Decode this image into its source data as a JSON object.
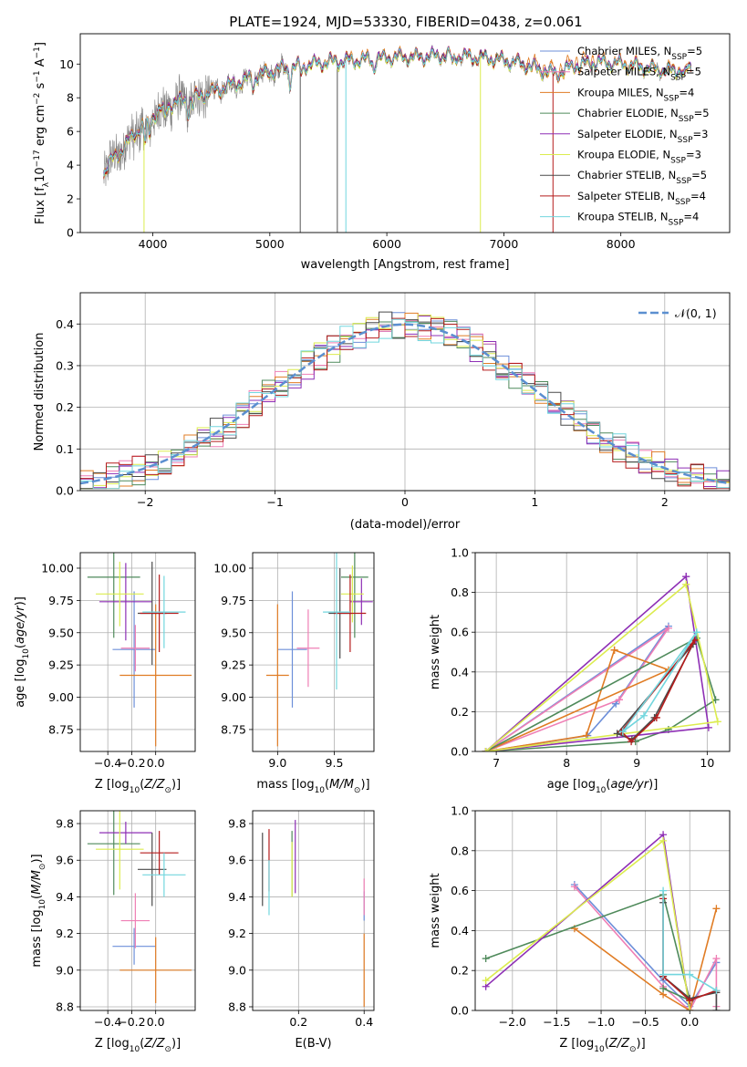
{
  "figure_title": "PLATE=1924, MJD=53330, FIBERID=0438, z=0.061",
  "colors": {
    "Chabrier MILES": "#6d8fd9",
    "Salpeter MILES": "#ef7fb5",
    "Kroupa MILES": "#e07c24",
    "Chabrier ELODIE": "#4f8a5b",
    "Salpeter ELODIE": "#8e2fb5",
    "Kroupa ELODIE": "#dcec4e",
    "Chabrier STELIB": "#4a4a4a",
    "Salpeter STELIB": "#b51c1c",
    "Kroupa STELIB": "#72d6de",
    "data": "#808080",
    "normal": "#5b8fd0"
  },
  "chart_data": [
    {
      "id": "spectrum",
      "type": "line",
      "title": "PLATE=1924, MJD=53330, FIBERID=0438, z=0.061",
      "xlabel": "wavelength [Angstrom, rest frame]",
      "ylabel": "Flux [f_λ 10^-17 erg cm^-2 s^-1 A^-1]",
      "xlim": [
        3380,
        8930
      ],
      "ylim": [
        0,
        11.8
      ],
      "xticks": [
        4000,
        5000,
        6000,
        7000,
        8000
      ],
      "yticks": [
        0,
        2,
        4,
        6,
        8,
        10
      ],
      "legend_position": "right",
      "legend": [
        "Chabrier MILES, N_SSP=5",
        "Salpeter MILES, N_SSP=5",
        "Kroupa MILES, N_SSP=4",
        "Chabrier ELODIE, N_SSP=5",
        "Salpeter ELODIE, N_SSP=3",
        "Kroupa ELODIE, N_SSP=3",
        "Chabrier STELIB, N_SSP=5",
        "Salpeter STELIB, N_SSP=4",
        "Kroupa STELIB, N_SSP=4"
      ],
      "continuum": [
        [
          3580,
          3.5
        ],
        [
          3650,
          4.3
        ],
        [
          3750,
          5.0
        ],
        [
          3850,
          5.9
        ],
        [
          3950,
          6.6
        ],
        [
          4050,
          7.2
        ],
        [
          4150,
          7.6
        ],
        [
          4300,
          7.9
        ],
        [
          4500,
          8.3
        ],
        [
          4700,
          8.8
        ],
        [
          4900,
          9.3
        ],
        [
          5100,
          9.7
        ],
        [
          5300,
          9.9
        ],
        [
          5500,
          10.1
        ],
        [
          5700,
          10.2
        ],
        [
          5900,
          10.3
        ],
        [
          6100,
          10.4
        ],
        [
          6300,
          10.4
        ],
        [
          6500,
          10.5
        ],
        [
          6700,
          10.4
        ],
        [
          6900,
          10.3
        ],
        [
          7100,
          10.1
        ],
        [
          7300,
          9.7
        ],
        [
          7450,
          9.4
        ],
        [
          7600,
          9.9
        ],
        [
          7800,
          10.1
        ],
        [
          8000,
          10.0
        ],
        [
          8200,
          9.8
        ],
        [
          8400,
          9.6
        ],
        [
          8600,
          9.7
        ]
      ]
    },
    {
      "id": "residuals",
      "type": "line",
      "xlabel": "(data-model)/error",
      "ylabel": "Normed distribution",
      "xlim": [
        -2.5,
        2.5
      ],
      "ylim": [
        0,
        0.475
      ],
      "xticks": [
        -2,
        -1,
        0,
        1,
        2
      ],
      "yticks": [
        0.0,
        0.1,
        0.2,
        0.3,
        0.4
      ],
      "legend": [
        "𝒩(0, 1)"
      ],
      "legend_position": "upper right",
      "normal": {
        "mean": 0,
        "sigma": 1
      }
    },
    {
      "id": "age_vs_Z",
      "type": "scatter",
      "xlabel": "Z [log10(Z/Z☉)]",
      "ylabel": "age [log10(age/yr)]",
      "xlim": [
        -0.63,
        0.33
      ],
      "ylim": [
        8.58,
        10.12
      ],
      "xticks": [
        -0.4,
        -0.2,
        0.0
      ],
      "xtick_labels": [
        "−0.4",
        "−0.2",
        "0.0"
      ],
      "yticks": [
        8.75,
        9.0,
        9.25,
        9.5,
        9.75,
        10.0
      ],
      "ytick_labels": [
        "8.75",
        "9.00",
        "9.25",
        "9.50",
        "9.75",
        "10.00"
      ],
      "points": [
        {
          "series": "Chabrier MILES",
          "x": -0.18,
          "y": 9.37,
          "xerr": 0.18,
          "yerr": 0.45
        },
        {
          "series": "Salpeter MILES",
          "x": -0.17,
          "y": 9.38,
          "xerr": 0.12,
          "yerr": 0.18
        },
        {
          "series": "Kroupa MILES",
          "x": 0.0,
          "y": 9.17,
          "xerr": 0.3,
          "yerr": 0.55
        },
        {
          "series": "Chabrier ELODIE",
          "x": -0.35,
          "y": 9.93,
          "xerr": 0.22,
          "yerr": 0.47
        },
        {
          "series": "Salpeter ELODIE",
          "x": -0.25,
          "y": 9.74,
          "xerr": 0.22,
          "yerr": 0.3
        },
        {
          "series": "Kroupa ELODIE",
          "x": -0.3,
          "y": 9.8,
          "xerr": 0.2,
          "yerr": 0.25
        },
        {
          "series": "Chabrier STELIB",
          "x": -0.03,
          "y": 9.65,
          "xerr": 0.12,
          "yerr": 0.4
        },
        {
          "series": "Salpeter STELIB",
          "x": 0.03,
          "y": 9.65,
          "xerr": 0.16,
          "yerr": 0.3
        },
        {
          "series": "Kroupa STELIB",
          "x": 0.07,
          "y": 9.66,
          "xerr": 0.18,
          "yerr": 0.28
        }
      ]
    },
    {
      "id": "age_vs_mass",
      "type": "scatter",
      "xlabel": "mass [log10(M/M☉)]",
      "ylabel": "",
      "xlim": [
        8.78,
        9.85
      ],
      "ylim": [
        8.58,
        10.12
      ],
      "xticks": [
        9.0,
        9.5
      ],
      "xtick_labels": [
        "9.0",
        "9.5"
      ],
      "yticks": [
        8.75,
        9.0,
        9.25,
        9.5,
        9.75,
        10.0
      ],
      "ytick_labels": [
        "8.75",
        "9.00",
        "9.25",
        "9.50",
        "9.75",
        "10.00"
      ],
      "points": [
        {
          "series": "Chabrier MILES",
          "x": 9.13,
          "y": 9.37,
          "xerr": 0.13,
          "yerr": 0.45
        },
        {
          "series": "Salpeter MILES",
          "x": 9.27,
          "y": 9.38,
          "xerr": 0.1,
          "yerr": 0.3
        },
        {
          "series": "Kroupa MILES",
          "x": 9.0,
          "y": 9.17,
          "xerr": 0.1,
          "yerr": 0.55
        },
        {
          "series": "Chabrier ELODIE",
          "x": 9.68,
          "y": 9.93,
          "xerr": 0.12,
          "yerr": 0.47
        },
        {
          "series": "Salpeter ELODIE",
          "x": 9.74,
          "y": 9.74,
          "xerr": 0.1,
          "yerr": 0.18
        },
        {
          "series": "Kroupa ELODIE",
          "x": 9.66,
          "y": 9.8,
          "xerr": 0.1,
          "yerr": 0.22
        },
        {
          "series": "Chabrier STELIB",
          "x": 9.55,
          "y": 9.65,
          "xerr": 0.1,
          "yerr": 0.35
        },
        {
          "series": "Salpeter STELIB",
          "x": 9.64,
          "y": 9.65,
          "xerr": 0.14,
          "yerr": 0.3
        },
        {
          "series": "Kroupa STELIB",
          "x": 9.52,
          "y": 9.66,
          "xerr": 0.12,
          "yerr": 0.6
        }
      ]
    },
    {
      "id": "weight_vs_age",
      "type": "line",
      "xlabel": "age [log10(age/yr)]",
      "ylabel": "mass weight",
      "xlim": [
        6.7,
        10.32
      ],
      "ylim": [
        0,
        1.0
      ],
      "xticks": [
        7,
        8,
        9,
        10
      ],
      "yticks": [
        0.0,
        0.2,
        0.4,
        0.6,
        0.8,
        1.0
      ],
      "series": [
        {
          "name": "Chabrier MILES",
          "x": [
            8.7,
            9.45,
            6.85,
            8.3,
            8.7
          ],
          "y": [
            0.24,
            0.63,
            0.0,
            0.08,
            0.24
          ]
        },
        {
          "name": "Salpeter MILES",
          "x": [
            8.75,
            9.45,
            6.85,
            8.75
          ],
          "y": [
            0.26,
            0.62,
            0.0,
            0.26
          ]
        },
        {
          "name": "Kroupa MILES",
          "x": [
            8.68,
            9.45,
            6.85,
            8.28,
            8.68
          ],
          "y": [
            0.51,
            0.41,
            0.0,
            0.08,
            0.51
          ]
        },
        {
          "name": "Chabrier ELODIE",
          "x": [
            9.85,
            10.12,
            9.45,
            8.98,
            6.85,
            9.85
          ],
          "y": [
            0.57,
            0.26,
            0.11,
            0.05,
            0.0,
            0.57
          ]
        },
        {
          "name": "Salpeter ELODIE",
          "x": [
            9.7,
            10.02,
            6.85,
            9.7
          ],
          "y": [
            0.88,
            0.12,
            0.0,
            0.88
          ]
        },
        {
          "name": "Kroupa ELODIE",
          "x": [
            9.7,
            10.15,
            6.85,
            9.7
          ],
          "y": [
            0.84,
            0.15,
            0.0,
            0.84
          ]
        },
        {
          "name": "Chabrier STELIB",
          "x": [
            9.8,
            9.25,
            8.93,
            8.72,
            9.8
          ],
          "y": [
            0.54,
            0.17,
            0.06,
            0.09,
            0.54
          ]
        },
        {
          "name": "Salpeter STELIB",
          "x": [
            9.82,
            9.28,
            8.92,
            8.78,
            9.82
          ],
          "y": [
            0.56,
            0.17,
            0.05,
            0.1,
            0.56
          ]
        },
        {
          "name": "Kroupa STELIB",
          "x": [
            9.85,
            9.1,
            8.8,
            9.85
          ],
          "y": [
            0.6,
            0.18,
            0.1,
            0.6
          ]
        }
      ]
    },
    {
      "id": "mass_vs_Z",
      "type": "scatter",
      "xlabel": "Z [log10(Z/Z☉)]",
      "ylabel": "mass [log10(M/M☉)]",
      "xlim": [
        -0.63,
        0.33
      ],
      "ylim": [
        8.78,
        9.87
      ],
      "xticks": [
        -0.4,
        -0.2,
        0.0
      ],
      "xtick_labels": [
        "−0.4",
        "−0.2",
        "0.0"
      ],
      "yticks": [
        8.8,
        9.0,
        9.2,
        9.4,
        9.6,
        9.8
      ],
      "ytick_labels": [
        "8.8",
        "9.0",
        "9.2",
        "9.4",
        "9.6",
        "9.8"
      ],
      "points": [
        {
          "series": "Chabrier MILES",
          "x": -0.18,
          "y": 9.13,
          "xerr": 0.18,
          "yerr": 0.1
        },
        {
          "series": "Salpeter MILES",
          "x": -0.17,
          "y": 9.27,
          "xerr": 0.12,
          "yerr": 0.15
        },
        {
          "series": "Kroupa MILES",
          "x": 0.0,
          "y": 9.0,
          "xerr": 0.3,
          "yerr": 0.18
        },
        {
          "series": "Chabrier ELODIE",
          "x": -0.35,
          "y": 9.69,
          "xerr": 0.22,
          "yerr": 0.28
        },
        {
          "series": "Salpeter ELODIE",
          "x": -0.25,
          "y": 9.75,
          "xerr": 0.22,
          "yerr": 0.06
        },
        {
          "series": "Kroupa ELODIE",
          "x": -0.3,
          "y": 9.66,
          "xerr": 0.2,
          "yerr": 0.22
        },
        {
          "series": "Chabrier STELIB",
          "x": -0.03,
          "y": 9.55,
          "xerr": 0.12,
          "yerr": 0.2
        },
        {
          "series": "Salpeter STELIB",
          "x": 0.03,
          "y": 9.64,
          "xerr": 0.16,
          "yerr": 0.12
        },
        {
          "series": "Kroupa STELIB",
          "x": 0.07,
          "y": 9.52,
          "xerr": 0.18,
          "yerr": 0.12
        }
      ]
    },
    {
      "id": "mass_vs_EBV",
      "type": "scatter",
      "xlabel": "E(B-V)",
      "ylabel": "",
      "xlim": [
        0.06,
        0.43
      ],
      "ylim": [
        8.78,
        9.87
      ],
      "xticks": [
        0.2,
        0.4
      ],
      "xtick_labels": [
        "0.2",
        "0.4"
      ],
      "yticks": [
        8.8,
        9.0,
        9.2,
        9.4,
        9.6,
        9.8
      ],
      "ytick_labels": [
        "8.8",
        "9.0",
        "9.2",
        "9.4",
        "9.6",
        "9.8"
      ],
      "points": [
        {
          "series": "Chabrier MILES",
          "x": 0.4,
          "y": 9.35,
          "xerr": 0,
          "yerr": 0.08
        },
        {
          "series": "Salpeter MILES",
          "x": 0.4,
          "y": 9.4,
          "xerr": 0,
          "yerr": 0.1
        },
        {
          "series": "Kroupa MILES",
          "x": 0.4,
          "y": 9.0,
          "xerr": 0,
          "yerr": 0.2
        },
        {
          "series": "Chabrier ELODIE",
          "x": 0.18,
          "y": 9.58,
          "xerr": 0,
          "yerr": 0.18
        },
        {
          "series": "Salpeter ELODIE",
          "x": 0.19,
          "y": 9.62,
          "xerr": 0,
          "yerr": 0.2
        },
        {
          "series": "Kroupa ELODIE",
          "x": 0.18,
          "y": 9.55,
          "xerr": 0,
          "yerr": 0.15
        },
        {
          "series": "Chabrier STELIB",
          "x": 0.09,
          "y": 9.55,
          "xerr": 0,
          "yerr": 0.2
        },
        {
          "series": "Salpeter STELIB",
          "x": 0.11,
          "y": 9.6,
          "xerr": 0,
          "yerr": 0.17
        },
        {
          "series": "Kroupa STELIB",
          "x": 0.11,
          "y": 9.45,
          "xerr": 0,
          "yerr": 0.15
        }
      ]
    },
    {
      "id": "weight_vs_Z",
      "type": "line",
      "xlabel": "Z [log10(Z/Z☉)]",
      "ylabel": "mass weight",
      "xlim": [
        -2.42,
        0.45
      ],
      "ylim": [
        0,
        1.0
      ],
      "xticks": [
        -2.0,
        -1.5,
        -1.0,
        -0.5,
        0.0
      ],
      "xtick_labels": [
        "−2.0",
        "−1.5",
        "−1.0",
        "−0.5",
        "0.0"
      ],
      "yticks": [
        0.0,
        0.2,
        0.4,
        0.6,
        0.8,
        1.0
      ],
      "series": [
        {
          "name": "Chabrier MILES",
          "x": [
            -1.3,
            -0.3,
            0.0,
            0.3
          ],
          "y": [
            0.63,
            0.15,
            0.02,
            0.24
          ]
        },
        {
          "name": "Salpeter MILES",
          "x": [
            -1.3,
            -0.3,
            0.0,
            0.3,
            0.3
          ],
          "y": [
            0.62,
            0.12,
            0.0,
            0.26,
            0.02
          ]
        },
        {
          "name": "Kroupa MILES",
          "x": [
            -1.3,
            -0.3,
            0.0,
            0.3
          ],
          "y": [
            0.41,
            0.08,
            0.0,
            0.51
          ]
        },
        {
          "name": "Chabrier ELODIE",
          "x": [
            -2.3,
            -0.3,
            0.0,
            -0.3
          ],
          "y": [
            0.26,
            0.58,
            0.05,
            0.11
          ]
        },
        {
          "name": "Salpeter ELODIE",
          "x": [
            -2.3,
            -0.3,
            0.0
          ],
          "y": [
            0.12,
            0.88,
            0.0
          ]
        },
        {
          "name": "Kroupa ELODIE",
          "x": [
            -2.3,
            -0.3,
            0.0
          ],
          "y": [
            0.15,
            0.85,
            0.0
          ]
        },
        {
          "name": "Chabrier STELIB",
          "x": [
            -0.3,
            -0.3,
            0.0,
            0.3,
            0.3
          ],
          "y": [
            0.54,
            0.17,
            0.06,
            0.09,
            0.0
          ]
        },
        {
          "name": "Salpeter STELIB",
          "x": [
            -0.3,
            -0.3,
            0.0,
            0.3
          ],
          "y": [
            0.56,
            0.17,
            0.05,
            0.1
          ]
        },
        {
          "name": "Kroupa STELIB",
          "x": [
            -0.3,
            -0.3,
            0.0,
            0.3
          ],
          "y": [
            0.6,
            0.18,
            0.18,
            0.1
          ]
        }
      ]
    }
  ]
}
